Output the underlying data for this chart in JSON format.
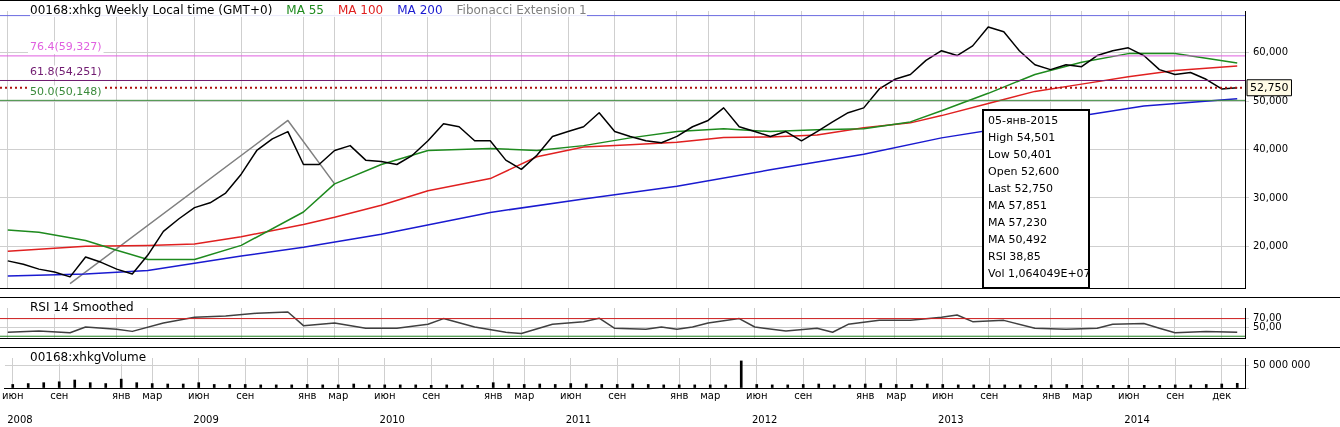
{
  "chart_data": [
    {
      "type": "line",
      "title": "00168:xhkg Weekly Local time (GMT+0)",
      "legend": "top left",
      "grid": true,
      "tick_labels": "y",
      "marker": "none",
      "categories": [
        null,
        null,
        null,
        null,
        null,
        null,
        null,
        null,
        null,
        null,
        null,
        null,
        null,
        null,
        null,
        null,
        null,
        null,
        null,
        null,
        null,
        null,
        null,
        null,
        null,
        null,
        null,
        null,
        null,
        null,
        null,
        null,
        null,
        null,
        null,
        null,
        null,
        null,
        null,
        null,
        null,
        null,
        null,
        null,
        null,
        null,
        null,
        null,
        null,
        null,
        null,
        null,
        null,
        null,
        null,
        null,
        null,
        null,
        null,
        null,
        null,
        null,
        null,
        null,
        null,
        null,
        null,
        null,
        null,
        null,
        null,
        null,
        null,
        null,
        null,
        null,
        null,
        null,
        null,
        null
      ],
      "ylim": [
        11400,
        68600
      ],
      "yticks": [
        {
          "value": 20000,
          "label": "20,000"
        },
        {
          "value": 30000,
          "label": "30,000"
        },
        {
          "value": 40000,
          "label": "40,000"
        },
        {
          "value": 50000,
          "label": "50,000"
        },
        {
          "value": 60000,
          "label": "60,000"
        }
      ],
      "series": [
        {
          "color": "#000000",
          "values": [
            17000,
            16300,
            15300,
            14700,
            13700,
            17800,
            16700,
            15300,
            14300,
            18200,
            23100,
            25700,
            28000,
            29000,
            31000,
            34900,
            39800,
            42200,
            43700,
            36900,
            36900,
            39800,
            40800,
            37800,
            37500,
            36900,
            38800,
            41800,
            45300,
            44700,
            41800,
            41800,
            37800,
            35900,
            38800,
            42700,
            43700,
            44700,
            47600,
            43700,
            42700,
            41800,
            41400,
            42700,
            44700,
            46000,
            48600,
            44700,
            43700,
            42700,
            43700,
            41800,
            43700,
            45700,
            47600,
            48600,
            52500,
            54500,
            55500,
            58400,
            60400,
            59400,
            61400,
            65300,
            64300,
            60400,
            57500,
            56500,
            57500,
            57100,
            59400,
            60400,
            61000,
            59400,
            56500,
            55500,
            55900,
            54500,
            52500,
            52750
          ]
        },
        {
          "name": "MA 55",
          "color": "#1e8a1e",
          "values": [
            23400,
            null,
            22900,
            null,
            null,
            21200,
            null,
            19200,
            null,
            17300,
            null,
            null,
            17300,
            null,
            null,
            20200,
            null,
            null,
            null,
            27100,
            null,
            32900,
            null,
            null,
            36900,
            null,
            null,
            39800,
            null,
            null,
            null,
            40200,
            null,
            null,
            39800,
            null,
            null,
            40800,
            null,
            null,
            42400,
            null,
            null,
            43700,
            null,
            null,
            44300,
            null,
            null,
            43700,
            null,
            null,
            44100,
            null,
            null,
            44300,
            null,
            null,
            45700,
            null,
            48000,
            null,
            null,
            51600,
            null,
            null,
            55500,
            null,
            null,
            58000,
            null,
            null,
            59800,
            null,
            null,
            59800,
            null,
            null,
            null,
            57850
          ]
        },
        {
          "name": "MA 100",
          "color": "#e02020",
          "values": [
            19000,
            null,
            null,
            null,
            null,
            20000,
            null,
            null,
            null,
            20200,
            null,
            null,
            20500,
            null,
            null,
            22000,
            null,
            null,
            null,
            24500,
            null,
            26000,
            null,
            null,
            28500,
            null,
            null,
            31500,
            null,
            null,
            null,
            34000,
            null,
            null,
            38500,
            null,
            null,
            40500,
            null,
            null,
            41000,
            null,
            null,
            41500,
            null,
            null,
            42500,
            null,
            null,
            42600,
            null,
            null,
            43000,
            null,
            null,
            44500,
            null,
            null,
            45500,
            null,
            47000,
            null,
            null,
            49500,
            null,
            null,
            52000,
            null,
            null,
            53500,
            null,
            null,
            55000,
            null,
            null,
            56300,
            null,
            null,
            null,
            57230
          ]
        },
        {
          "name": "MA 200",
          "color": "#1a1ad0",
          "values": [
            13900,
            null,
            null,
            null,
            null,
            14300,
            null,
            null,
            null,
            15000,
            null,
            null,
            16500,
            null,
            null,
            18000,
            null,
            null,
            null,
            19800,
            null,
            null,
            null,
            null,
            22500,
            null,
            null,
            null,
            null,
            null,
            null,
            27000,
            null,
            null,
            null,
            null,
            null,
            29800,
            null,
            null,
            null,
            null,
            null,
            32400,
            null,
            null,
            null,
            null,
            null,
            35800,
            null,
            null,
            null,
            null,
            null,
            39000,
            null,
            null,
            null,
            null,
            42400,
            null,
            null,
            null,
            null,
            null,
            null,
            null,
            null,
            null,
            null,
            null,
            null,
            49000,
            null,
            null,
            null,
            null,
            null,
            50490
          ]
        },
        {
          "name": "Fibonacci Extension 1",
          "color": "#808080",
          "values": [
            null,
            null,
            null,
            null,
            12300,
            null,
            null,
            null,
            null,
            null,
            null,
            null,
            null,
            null,
            null,
            null,
            null,
            null,
            46000,
            null,
            null,
            32900,
            null,
            null,
            null,
            null,
            null,
            null,
            null,
            null,
            null,
            null,
            null,
            null,
            null,
            null,
            null,
            null,
            null,
            null,
            null,
            null,
            null,
            null,
            null,
            null,
            null,
            null,
            null,
            null,
            null,
            null,
            null,
            null,
            null,
            null,
            null,
            null,
            null,
            null,
            null,
            null,
            null,
            null,
            null,
            null,
            null,
            null,
            null,
            null,
            null,
            null,
            null,
            null,
            null,
            null,
            null,
            null,
            null,
            null
          ]
        }
      ],
      "ref_lines": [
        {
          "axis": "y",
          "value": 67650,
          "color": "#6a6ae0"
        },
        {
          "axis": "y",
          "value": 59327,
          "label": "76.4(59,327)",
          "color": "#e060e0"
        },
        {
          "axis": "y",
          "value": 54251,
          "label": "61.8(54,251)",
          "color": "#701a70"
        },
        {
          "axis": "y",
          "value": 50148,
          "label": "50.0(50,148)",
          "color": "#3a8a3a"
        },
        {
          "axis": "y",
          "value": 52750,
          "label": "52,750",
          "color": "#b01010",
          "line_style": "dotted"
        }
      ],
      "annotations": [
        "05-янв-2015",
        "High 54,501",
        "Low 50,401",
        "Open 52,600",
        "Last 52,750",
        "MA 57,851",
        "MA 57,230",
        "MA 50,492",
        "RSI 38,85",
        "Vol 1,064049E+07"
      ]
    },
    {
      "type": "line",
      "title": "RSI 14 Smoothed",
      "grid": true,
      "tick_labels": "y",
      "marker": "none",
      "categories": [
        null,
        null,
        null,
        null,
        null,
        null,
        null,
        null,
        null,
        null,
        null,
        null,
        null,
        null,
        null,
        null,
        null,
        null,
        null,
        null,
        null,
        null,
        null,
        null,
        null,
        null,
        null,
        null,
        null,
        null,
        null,
        null,
        null,
        null,
        null,
        null,
        null,
        null,
        null,
        null,
        null,
        null,
        null,
        null,
        null,
        null,
        null,
        null,
        null,
        null,
        null,
        null,
        null,
        null,
        null,
        null,
        null,
        null,
        null,
        null,
        null,
        null,
        null,
        null,
        null,
        null,
        null,
        null,
        null,
        null,
        null,
        null,
        null,
        null,
        null,
        null,
        null,
        null,
        null,
        null
      ],
      "ylim": [
        26,
        94
      ],
      "yticks": [
        {
          "value": 50,
          "label": "50,00"
        },
        {
          "value": 70,
          "label": "70,00"
        }
      ],
      "series": [
        {
          "color": "#404040",
          "values": [
            39,
            null,
            42,
            null,
            38,
            51,
            null,
            46,
            41,
            null,
            60,
            null,
            73,
            null,
            76,
            null,
            82,
            null,
            85,
            54,
            null,
            60,
            null,
            48,
            null,
            48,
            null,
            57,
            70,
            null,
            51,
            null,
            39,
            36,
            null,
            57,
            null,
            63,
            71,
            48,
            null,
            46,
            51,
            46,
            51,
            60,
            null,
            70,
            51,
            null,
            42,
            null,
            48,
            39,
            57,
            null,
            66,
            null,
            66,
            null,
            73,
            78,
            63,
            null,
            66,
            null,
            48,
            null,
            46,
            null,
            48,
            57,
            null,
            59,
            48,
            38,
            null,
            41,
            null,
            39
          ]
        }
      ],
      "ref_lines": [
        {
          "axis": "y",
          "value": 70,
          "color": "#d02020"
        },
        {
          "axis": "y",
          "value": 30,
          "color": "#208020"
        }
      ]
    },
    {
      "type": "bar",
      "title": "00168:xhkgVolume",
      "grid": true,
      "categories": [
        "июн",
        null,
        null,
        "сен",
        null,
        null,
        null,
        "янв",
        null,
        "мар",
        null,
        null,
        "июн",
        null,
        null,
        "сен",
        null,
        null,
        null,
        "янв",
        null,
        "мар",
        null,
        null,
        "июн",
        null,
        null,
        "сен",
        null,
        null,
        null,
        "янв",
        null,
        "мар",
        null,
        null,
        "июн",
        null,
        null,
        "сен",
        null,
        null,
        null,
        "янв",
        null,
        "мар",
        null,
        null,
        "июн",
        null,
        null,
        "сен",
        null,
        null,
        null,
        "янв",
        null,
        "мар",
        null,
        null,
        "июн",
        null,
        null,
        "сен",
        null,
        null,
        null,
        "янв",
        null,
        "мар",
        null,
        null,
        "июн",
        null,
        null,
        "сен",
        null,
        null,
        "дек",
        null
      ],
      "x2lim": [
        2007.92,
        2014.58
      ],
      "x2ticks": [
        2008,
        2009,
        2010,
        2011,
        2012,
        2013,
        2014
      ],
      "ylim": [
        0,
        67600000
      ],
      "yticks": [
        {
          "value": 0,
          "label": null
        },
        {
          "value": 50000000,
          "label": "50 000 000"
        }
      ],
      "series": [
        {
          "color": "#000000",
          "values": [
            8000000,
            10000000,
            12000000,
            14000000,
            18000000,
            12000000,
            10000000,
            20000000,
            12000000,
            10000000,
            9000000,
            9000000,
            12000000,
            8000000,
            8000000,
            8000000,
            7000000,
            7000000,
            7000000,
            8000000,
            7000000,
            7000000,
            9000000,
            7000000,
            7000000,
            7000000,
            7000000,
            6000000,
            7000000,
            7000000,
            6000000,
            12000000,
            9000000,
            8000000,
            9000000,
            8000000,
            10000000,
            9000000,
            8000000,
            8000000,
            9000000,
            8000000,
            7000000,
            7000000,
            7000000,
            7000000,
            7000000,
            61000000,
            8000000,
            7000000,
            7000000,
            8000000,
            9000000,
            7000000,
            7000000,
            9000000,
            10000000,
            8000000,
            8000000,
            9000000,
            8000000,
            7000000,
            7000000,
            7000000,
            7000000,
            7000000,
            6000000,
            7000000,
            8000000,
            6000000,
            6000000,
            6000000,
            6000000,
            6000000,
            6000000,
            7000000,
            7000000,
            8000000,
            9000000,
            10600000
          ]
        }
      ]
    }
  ]
}
